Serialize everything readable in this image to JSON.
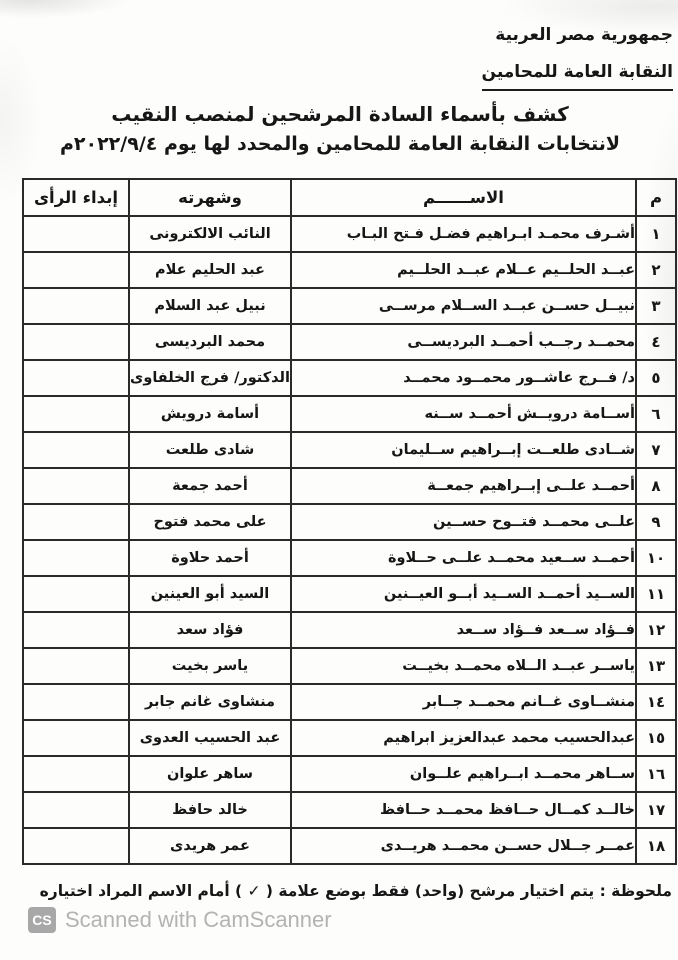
{
  "header": {
    "country": "جمهورية مصر العربية",
    "org": "النقابة العامة للمحامين"
  },
  "title": {
    "line1": "كشف بأسماء السادة المرشحين لمنصب النقيب",
    "line2": "لانتخابات النقابة العامة للمحامين والمحدد لها يوم ٢٠٢٢/٩/٤م"
  },
  "table": {
    "columns": {
      "no": "م",
      "name": "الاســــــم",
      "alias": "وشهرته",
      "opinion": "إبداء الرأى"
    },
    "rows": [
      {
        "no": "١",
        "name": "أشـرف محمـد ابـراهيم فضـل فـتح البـاب",
        "alias": "النائب الالكترونى"
      },
      {
        "no": "٢",
        "name": "عبــد الحلــيم عــلام عبــد الحلــيم",
        "alias": "عبد الحليم علام"
      },
      {
        "no": "٣",
        "name": "نبيــل حســن عبــد الســلام مرســى",
        "alias": "نبيل عبد السلام"
      },
      {
        "no": "٤",
        "name": "محمــد رجــب أحمــد البرديســى",
        "alias": "محمد البرديسى"
      },
      {
        "no": "٥",
        "name": "د/ فــرج عاشــور محمــود محمــد",
        "alias": "الدكتور/ فرج الخلفاوى"
      },
      {
        "no": "٦",
        "name": "أســامة درويــش أحمــد ســنه",
        "alias": "أسامة درويش"
      },
      {
        "no": "٧",
        "name": "شــادى طلعــت إبــراهيم ســليمان",
        "alias": "شادى طلعت"
      },
      {
        "no": "٨",
        "name": "أحمــد علــى إبــراهيم جمعــة",
        "alias": "أحمد جمعة"
      },
      {
        "no": "٩",
        "name": "علــى محمــد فتــوح حســين",
        "alias": "على محمد فتوح"
      },
      {
        "no": "١٠",
        "name": "أحمــد ســعيد محمــد علــى حــلاوة",
        "alias": "أحمد حلاوة"
      },
      {
        "no": "١١",
        "name": "الســيد أحمــد الســيد أبــو العيــنين",
        "alias": "السيد أبو العينين"
      },
      {
        "no": "١٢",
        "name": "فــؤاد ســعد فــؤاد ســعد",
        "alias": "فؤاد سعد"
      },
      {
        "no": "١٣",
        "name": "ياســر عبــد الــلاه محمــد بخيــت",
        "alias": "ياسر بخيت"
      },
      {
        "no": "١٤",
        "name": "منشــاوى غــانم محمــد جــابر",
        "alias": "منشاوى غانم جابر"
      },
      {
        "no": "١٥",
        "name": "عبدالحسيب محمد عبدالعزيز ابراهيم",
        "alias": "عبد الحسيب العدوى"
      },
      {
        "no": "١٦",
        "name": "ســاهر محمــد ابــراهيم علــوان",
        "alias": "ساهر علوان"
      },
      {
        "no": "١٧",
        "name": "خالــد كمــال حــافظ محمــد حــافظ",
        "alias": "خالد حافظ"
      },
      {
        "no": "١٨",
        "name": "عمــر جــلال حســن محمــد هريــدى",
        "alias": "عمر هريدى"
      }
    ]
  },
  "note": "ملحوظة : يتم اختيار مرشح (واحد) فقط بوضع علامة ( ✓ ) أمام الاسم المراد اختياره",
  "footer": {
    "badge": "CS",
    "text": "Scanned with CamScanner"
  },
  "colors": {
    "ink": "#1a1a1a",
    "table_border": "#2a2a2a",
    "scanner_gray": "#b3b3b3"
  }
}
